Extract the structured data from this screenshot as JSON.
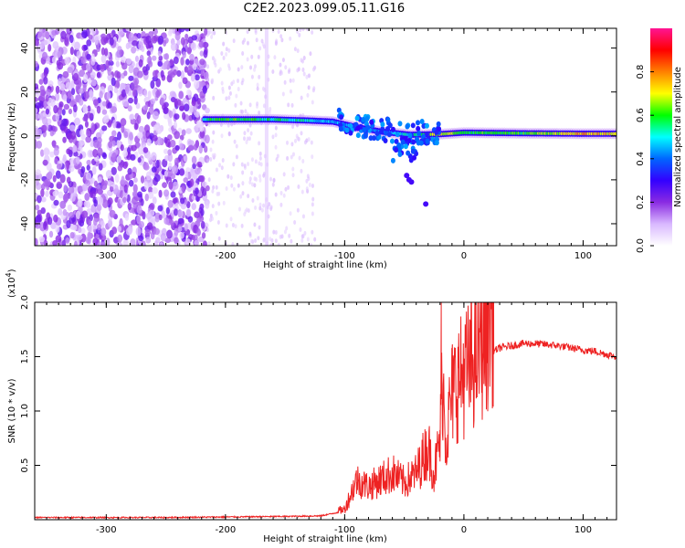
{
  "title": "C2E2.2023.099.05.11.G16",
  "chart_data": [
    {
      "type": "heatmap",
      "xlabel": "Height of straight line (km)",
      "ylabel": "Frequency (Hz)",
      "xlim": [
        -360,
        128
      ],
      "ylim": [
        -50,
        49
      ],
      "xticks": [
        -300,
        -200,
        -100,
        0,
        100
      ],
      "yticks": [
        -40,
        -20,
        0,
        20,
        40
      ],
      "colorbar": {
        "label": "Normalized spectral amplitude",
        "range": [
          0.0,
          1.0
        ],
        "ticks": [
          0.0,
          0.2,
          0.4,
          0.6,
          0.8
        ],
        "colors": [
          "#ffffff",
          "#d9b8ff",
          "#8a2be2",
          "#3300ff",
          "#0066ff",
          "#00ffff",
          "#00ff00",
          "#ffff00",
          "#ff8000",
          "#ff0000",
          "#ff1493"
        ]
      },
      "features": {
        "noise_region_x": [
          -360,
          -215
        ],
        "signal_track": [
          {
            "x": -218,
            "freq": 7.5,
            "amp": 0.55
          },
          {
            "x": -190,
            "freq": 7.5,
            "amp": 0.6
          },
          {
            "x": -160,
            "freq": 7.5,
            "amp": 0.55
          },
          {
            "x": -130,
            "freq": 7.0,
            "amp": 0.5
          },
          {
            "x": -110,
            "freq": 6.5,
            "amp": 0.45
          },
          {
            "x": -90,
            "freq": 4.0,
            "amp": 0.45
          },
          {
            "x": -70,
            "freq": 2.0,
            "amp": 0.45
          },
          {
            "x": -45,
            "freq": 0.5,
            "amp": 0.5
          },
          {
            "x": -20,
            "freq": 0.8,
            "amp": 0.7
          },
          {
            "x": 0,
            "freq": 1.5,
            "amp": 0.6
          },
          {
            "x": 50,
            "freq": 1.2,
            "amp": 0.6
          },
          {
            "x": 100,
            "freq": 1.0,
            "amp": 0.75
          },
          {
            "x": 128,
            "freq": 1.0,
            "amp": 0.7
          }
        ]
      }
    },
    {
      "type": "line",
      "xlabel": "Height of straight line (km)",
      "ylabel": "SNR (10 * v/v)",
      "yunit": "(x10^4)",
      "ymultiplier": "x10",
      "ymultiplier_exp": "4",
      "xlim": [
        -360,
        128
      ],
      "ylim": [
        0,
        2.0
      ],
      "xticks": [
        -300,
        -200,
        -100,
        0,
        100
      ],
      "yticks": [
        0.5,
        1.0,
        1.5,
        2.0
      ],
      "ytick_labels": [
        "0.5",
        "1.0",
        "1.5",
        "2.0"
      ],
      "series": [
        {
          "color": "#ee2222",
          "x": [
            -360,
            -300,
            -250,
            -200,
            -150,
            -120,
            -100,
            -90,
            -80,
            -70,
            -60,
            -50,
            -40,
            -30,
            -25,
            -20,
            -18,
            -15,
            -10,
            -5,
            0,
            5,
            10,
            15,
            20,
            25,
            30,
            40,
            50,
            60,
            70,
            80,
            90,
            100,
            110,
            120,
            128
          ],
          "y": [
            0.02,
            0.02,
            0.02,
            0.025,
            0.03,
            0.035,
            0.08,
            0.3,
            0.25,
            0.3,
            0.35,
            0.28,
            0.35,
            0.55,
            0.35,
            0.6,
            1.1,
            0.6,
            0.95,
            1.05,
            1.1,
            1.15,
            1.25,
            1.35,
            1.45,
            1.55,
            1.58,
            1.6,
            1.62,
            1.62,
            1.61,
            1.6,
            1.58,
            1.56,
            1.55,
            1.52,
            1.5
          ]
        }
      ],
      "spike": {
        "x": -19,
        "y": 2.0
      }
    }
  ]
}
